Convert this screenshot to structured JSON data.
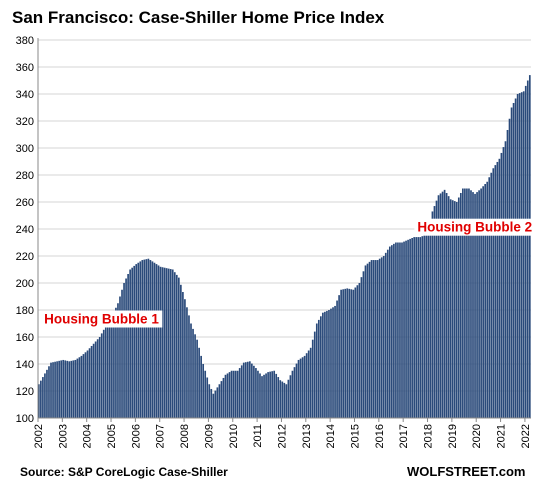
{
  "chart_data": {
    "type": "bar",
    "title": "San Francisco: Case-Shiller Home Price Index",
    "source": "Source: S&P CoreLogic Case-Shiller",
    "brand": "WOLFSTREET.com",
    "ylim": [
      100,
      380
    ],
    "yticks": [
      100,
      120,
      140,
      160,
      180,
      200,
      220,
      240,
      260,
      280,
      300,
      320,
      340,
      360,
      380
    ],
    "xticks": [
      "2002",
      "2003",
      "2004",
      "2005",
      "2006",
      "2007",
      "2008",
      "2009",
      "2010",
      "2011",
      "2012",
      "2013",
      "2014",
      "2015",
      "2016",
      "2017",
      "2018",
      "2019",
      "2020",
      "2021",
      "2022"
    ],
    "grid": "horizontal",
    "bar_color": "#2a4a7a",
    "annotations": [
      {
        "text": "Housing Bubble 1",
        "x": "2002-04",
        "y": 170
      },
      {
        "text": "Housing Bubble 2",
        "x": "2017-08",
        "y": 238
      }
    ],
    "keypoints": [
      [
        "2002-01",
        125
      ],
      [
        "2002-04",
        133
      ],
      [
        "2002-07",
        141
      ],
      [
        "2002-10",
        142
      ],
      [
        "2003-01",
        143
      ],
      [
        "2003-04",
        142
      ],
      [
        "2003-07",
        143
      ],
      [
        "2003-10",
        146
      ],
      [
        "2004-01",
        150
      ],
      [
        "2004-04",
        155
      ],
      [
        "2004-07",
        160
      ],
      [
        "2004-10",
        168
      ],
      [
        "2005-01",
        175
      ],
      [
        "2005-04",
        185
      ],
      [
        "2005-07",
        200
      ],
      [
        "2005-10",
        210
      ],
      [
        "2006-01",
        214
      ],
      [
        "2006-04",
        217
      ],
      [
        "2006-07",
        218
      ],
      [
        "2006-10",
        215
      ],
      [
        "2007-01",
        212
      ],
      [
        "2007-04",
        211
      ],
      [
        "2007-07",
        210
      ],
      [
        "2007-10",
        204
      ],
      [
        "2008-01",
        188
      ],
      [
        "2008-04",
        170
      ],
      [
        "2008-07",
        158
      ],
      [
        "2008-10",
        140
      ],
      [
        "2009-01",
        125
      ],
      [
        "2009-03",
        118
      ],
      [
        "2009-06",
        125
      ],
      [
        "2009-09",
        132
      ],
      [
        "2009-12",
        135
      ],
      [
        "2010-03",
        135
      ],
      [
        "2010-06",
        141
      ],
      [
        "2010-09",
        142
      ],
      [
        "2010-12",
        137
      ],
      [
        "2011-03",
        131
      ],
      [
        "2011-06",
        134
      ],
      [
        "2011-09",
        135
      ],
      [
        "2011-12",
        128
      ],
      [
        "2012-03",
        125
      ],
      [
        "2012-06",
        135
      ],
      [
        "2012-09",
        143
      ],
      [
        "2012-12",
        146
      ],
      [
        "2013-03",
        152
      ],
      [
        "2013-06",
        170
      ],
      [
        "2013-09",
        178
      ],
      [
        "2013-12",
        180
      ],
      [
        "2014-03",
        183
      ],
      [
        "2014-06",
        195
      ],
      [
        "2014-09",
        196
      ],
      [
        "2014-12",
        195
      ],
      [
        "2015-03",
        200
      ],
      [
        "2015-06",
        213
      ],
      [
        "2015-09",
        217
      ],
      [
        "2015-12",
        217
      ],
      [
        "2016-03",
        220
      ],
      [
        "2016-06",
        227
      ],
      [
        "2016-09",
        230
      ],
      [
        "2016-12",
        230
      ],
      [
        "2017-03",
        232
      ],
      [
        "2017-06",
        234
      ],
      [
        "2017-09",
        234
      ],
      [
        "2017-12",
        236
      ],
      [
        "2018-03",
        253
      ],
      [
        "2018-06",
        265
      ],
      [
        "2018-09",
        269
      ],
      [
        "2018-12",
        262
      ],
      [
        "2019-03",
        260
      ],
      [
        "2019-06",
        270
      ],
      [
        "2019-09",
        270
      ],
      [
        "2019-12",
        266
      ],
      [
        "2020-03",
        270
      ],
      [
        "2020-06",
        275
      ],
      [
        "2020-09",
        285
      ],
      [
        "2020-12",
        292
      ],
      [
        "2021-03",
        305
      ],
      [
        "2021-06",
        330
      ],
      [
        "2021-09",
        340
      ],
      [
        "2021-12",
        342
      ],
      [
        "2022-03",
        354
      ]
    ]
  }
}
